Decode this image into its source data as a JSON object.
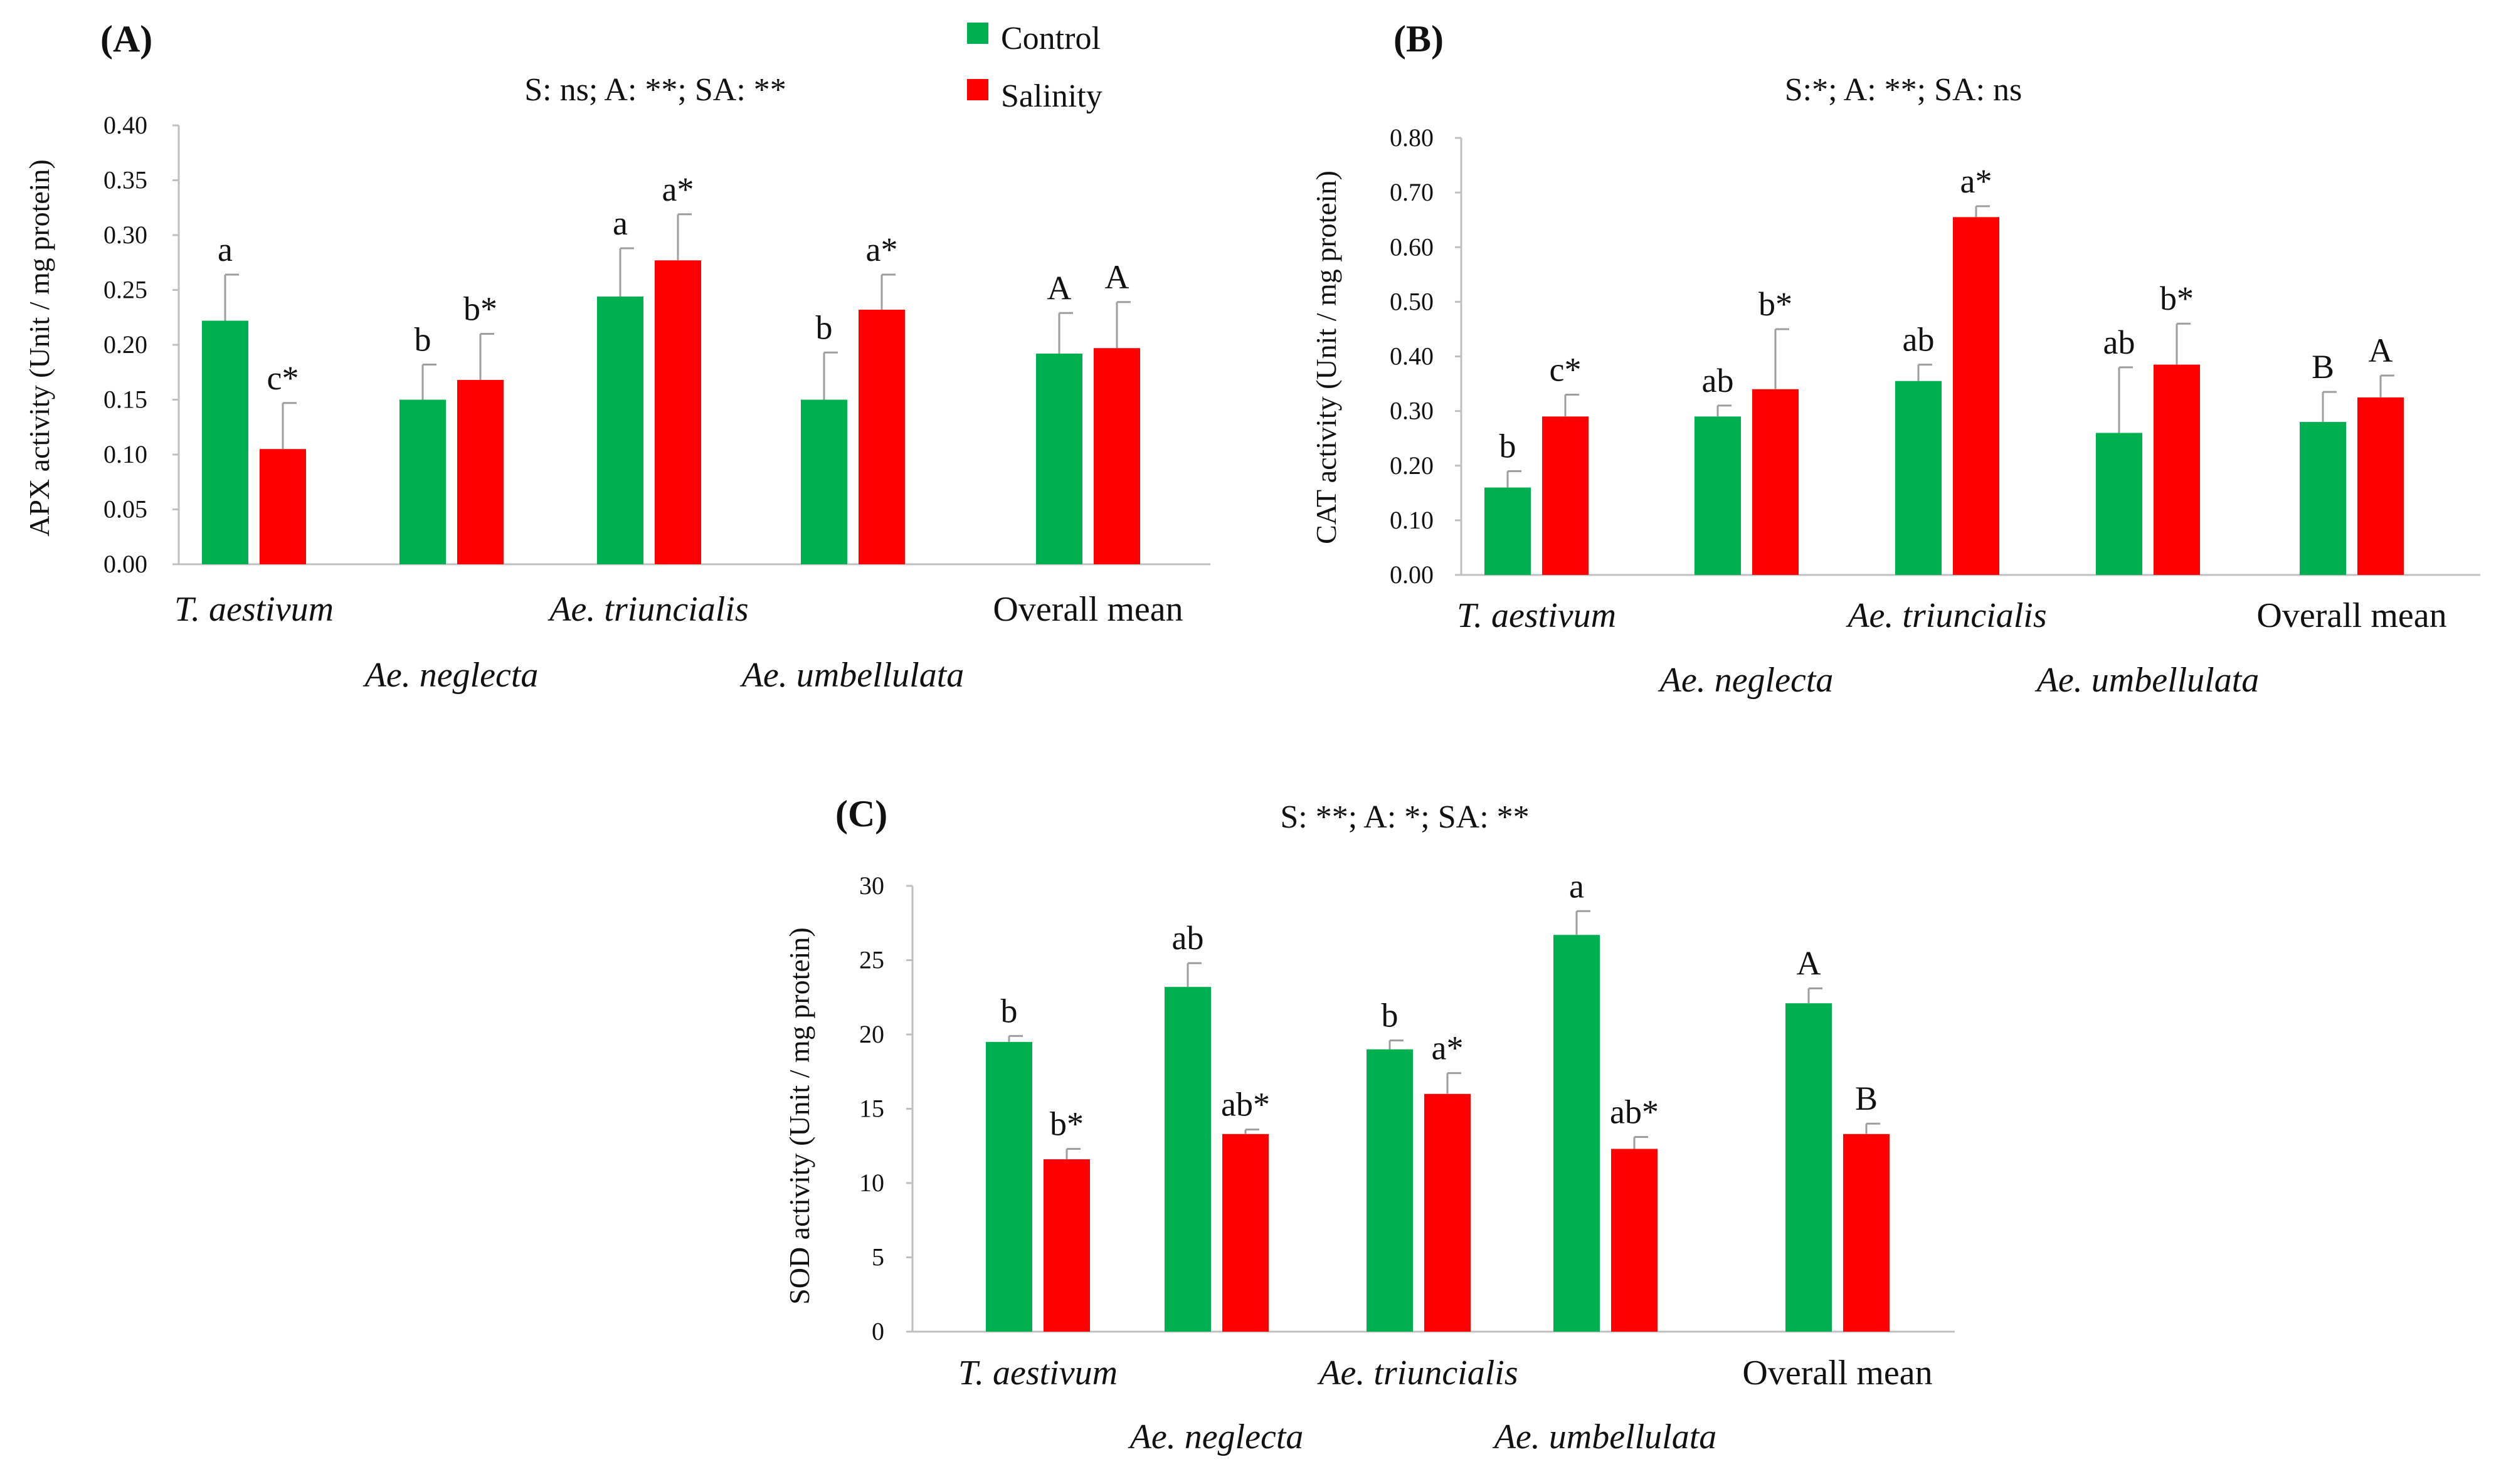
{
  "legend": {
    "control_label": "Control",
    "salinity_label": "Salinity"
  },
  "colors": {
    "control": "#00b050",
    "salinity": "#ff0000",
    "error": "#9e9e9e",
    "axis": "#bfbfbf"
  },
  "chart_data": [
    {
      "id": "A",
      "type": "bar",
      "panel_label": "(A)",
      "stats": "S: ns; A: **; SA: **",
      "ylabel": "APX activity (Unit / mg protein)",
      "ylim": [
        0,
        0.4
      ],
      "ytick_step": 0.05,
      "ytick_decimals": 2,
      "categories": [
        "T. aestivum",
        "Ae. neglecta",
        "Ae. triuncialis",
        "Ae. umbellulata",
        "Overall mean"
      ],
      "category_italic": [
        true,
        true,
        true,
        true,
        false
      ],
      "category_row": [
        0,
        1,
        0,
        1,
        0
      ],
      "series": [
        {
          "name": "Control",
          "values": [
            0.222,
            0.15,
            0.244,
            0.15,
            0.192
          ],
          "errors": [
            0.042,
            0.032,
            0.044,
            0.043,
            0.037
          ],
          "labels": [
            "a",
            "b",
            "a",
            "b",
            "A"
          ]
        },
        {
          "name": "Salinity",
          "values": [
            0.105,
            0.168,
            0.277,
            0.232,
            0.197
          ],
          "errors": [
            0.042,
            0.042,
            0.042,
            0.032,
            0.042
          ],
          "labels": [
            "c*",
            "b*",
            "a*",
            "a*",
            "A"
          ]
        }
      ]
    },
    {
      "id": "B",
      "type": "bar",
      "panel_label": "(B)",
      "stats": "S:*; A: **; SA: ns",
      "ylabel": "CAT activity (Unit / mg protein)",
      "ylim": [
        0,
        0.8
      ],
      "ytick_step": 0.1,
      "ytick_decimals": 2,
      "categories": [
        "T. aestivum",
        "Ae. neglecta",
        "Ae. triuncialis",
        "Ae. umbellulata",
        "Overall mean"
      ],
      "category_italic": [
        true,
        true,
        true,
        true,
        false
      ],
      "category_row": [
        0,
        1,
        0,
        1,
        0
      ],
      "series": [
        {
          "name": "Control",
          "values": [
            0.16,
            0.29,
            0.355,
            0.26,
            0.28
          ],
          "errors": [
            0.03,
            0.02,
            0.03,
            0.12,
            0.055
          ],
          "labels": [
            "b",
            "ab",
            "ab",
            "ab",
            "B"
          ]
        },
        {
          "name": "Salinity",
          "values": [
            0.29,
            0.34,
            0.655,
            0.385,
            0.325
          ],
          "errors": [
            0.04,
            0.11,
            0.02,
            0.075,
            0.04
          ],
          "labels": [
            "c*",
            "b*",
            "a*",
            "b*",
            "A"
          ]
        }
      ]
    },
    {
      "id": "C",
      "type": "bar",
      "panel_label": "(C)",
      "stats": "S: **; A: *; SA: **",
      "ylabel": "SOD activity (Unit / mg protein)",
      "ylim": [
        0,
        30
      ],
      "ytick_step": 5,
      "ytick_decimals": 0,
      "categories": [
        "T. aestivum",
        "Ae. neglecta",
        "Ae. triuncialis",
        "Ae. umbellulata",
        "Overall mean"
      ],
      "category_italic": [
        true,
        true,
        true,
        true,
        false
      ],
      "category_row": [
        0,
        1,
        0,
        1,
        0
      ],
      "series": [
        {
          "name": "Control",
          "values": [
            19.5,
            23.2,
            19.0,
            26.7,
            22.1
          ],
          "errors": [
            0.4,
            1.6,
            0.6,
            1.6,
            1.0
          ],
          "labels": [
            "b",
            "ab",
            "b",
            "a",
            "A"
          ]
        },
        {
          "name": "Salinity",
          "values": [
            11.6,
            13.3,
            16.0,
            12.3,
            13.3
          ],
          "errors": [
            0.7,
            0.3,
            1.4,
            0.8,
            0.7
          ],
          "labels": [
            "b*",
            "ab*",
            "a*",
            "ab*",
            "B"
          ]
        }
      ]
    }
  ]
}
